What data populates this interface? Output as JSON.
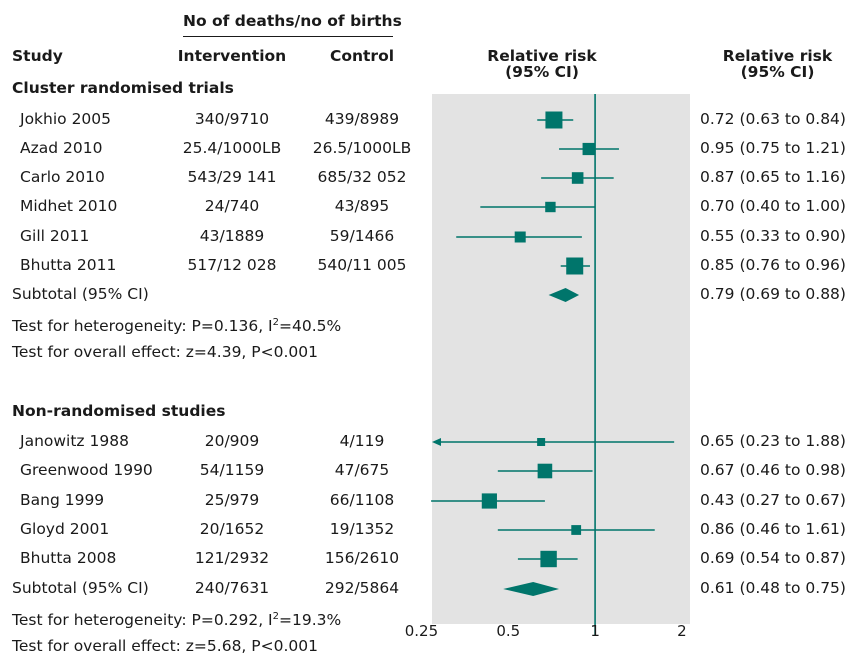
{
  "headers": {
    "deaths_group": "No of deaths/no of births",
    "study": "Study",
    "intervention": "Intervention",
    "control": "Control",
    "rr_plot_line1": "Relative risk",
    "rr_plot_line2": "(95% CI)",
    "rr_text_line1": "Relative risk",
    "rr_text_line2": "(95% CI)"
  },
  "colors": {
    "marker": "#00756b",
    "panel": "#e3e3e3",
    "text": "#1a1a1a"
  },
  "chart_data": {
    "type": "forest",
    "xscale": "log",
    "xlim": [
      0.23,
      2.05
    ],
    "xticks": [
      0.25,
      0.5,
      1,
      2
    ],
    "xtick_labels": [
      "0.25",
      "0.5",
      "1",
      "2"
    ],
    "reference_line": 1,
    "groups": [
      {
        "title": "Cluster randomised trials",
        "studies": [
          {
            "name": "Jokhio 2005",
            "intervention": "340/9710",
            "control": "439/8989",
            "rr": 0.72,
            "lo": 0.63,
            "hi": 0.84,
            "ci_text": "0.72 (0.63 to 0.84)",
            "weight": 1.0
          },
          {
            "name": "Azad 2010",
            "intervention": "25.4/1000LB",
            "control": "26.5/1000LB",
            "rr": 0.95,
            "lo": 0.75,
            "hi": 1.21,
            "ci_text": "0.95 (0.75 to 1.21)",
            "weight": 0.6
          },
          {
            "name": "Carlo 2010",
            "intervention": "543/29 141",
            "control": "685/32 052",
            "rr": 0.87,
            "lo": 0.65,
            "hi": 1.16,
            "ci_text": "0.87 (0.65 to 1.16)",
            "weight": 0.55
          },
          {
            "name": "Midhet 2010",
            "intervention": "24/740",
            "control": "43/895",
            "rr": 0.7,
            "lo": 0.4,
            "hi": 1.0,
            "ci_text": "0.70 (0.40 to 1.00)",
            "weight": 0.45
          },
          {
            "name": "Gill 2011",
            "intervention": "43/1889",
            "control": "59/1466",
            "rr": 0.55,
            "lo": 0.33,
            "hi": 0.9,
            "ci_text": "0.55 (0.33 to 0.90)",
            "weight": 0.5
          },
          {
            "name": "Bhutta 2011",
            "intervention": "517/12 028",
            "control": "540/11 005",
            "rr": 0.85,
            "lo": 0.76,
            "hi": 0.96,
            "ci_text": "0.85 (0.76 to 0.96)",
            "weight": 1.0
          }
        ],
        "subtotal": {
          "label": "Subtotal (95% CI)",
          "intervention": "",
          "control": "",
          "rr": 0.79,
          "lo": 0.69,
          "hi": 0.88,
          "ci_text": "0.79 (0.69 to 0.88)"
        },
        "heterogeneity_prefix": "Test for heterogeneity: P=0.136, I",
        "heterogeneity_sup": "2",
        "heterogeneity_suffix": "=40.5%",
        "overall_effect": "Test for overall effect: z=4.39, P<0.001"
      },
      {
        "title": "Non-randomised studies",
        "studies": [
          {
            "name": "Janowitz 1988",
            "intervention": "20/909",
            "control": "4/119",
            "rr": 0.65,
            "lo": 0.23,
            "hi": 1.88,
            "ci_text": "0.65 (0.23 to 1.88)",
            "weight": 0.25,
            "lo_arrow": true
          },
          {
            "name": "Greenwood 1990",
            "intervention": "54/1159",
            "control": "47/675",
            "rr": 0.67,
            "lo": 0.46,
            "hi": 0.98,
            "ci_text": "0.67 (0.46 to 0.98)",
            "weight": 0.8
          },
          {
            "name": "Bang 1999",
            "intervention": "25/979",
            "control": "66/1108",
            "rr": 0.43,
            "lo": 0.27,
            "hi": 0.67,
            "ci_text": "0.43 (0.27 to 0.67)",
            "weight": 0.85
          },
          {
            "name": "Gloyd 2001",
            "intervention": "20/1652",
            "control": "19/1352",
            "rr": 0.86,
            "lo": 0.46,
            "hi": 1.61,
            "ci_text": "0.86 (0.46 to 1.61)",
            "weight": 0.4
          },
          {
            "name": "Bhutta 2008",
            "intervention": "121/2932",
            "control": "156/2610",
            "rr": 0.69,
            "lo": 0.54,
            "hi": 0.87,
            "ci_text": "0.69 (0.54 to 0.87)",
            "weight": 0.95
          }
        ],
        "subtotal": {
          "label": "Subtotal (95% CI)",
          "intervention": "240/7631",
          "control": "292/5864",
          "rr": 0.61,
          "lo": 0.48,
          "hi": 0.75,
          "ci_text": "0.61 (0.48 to 0.75)"
        },
        "heterogeneity_prefix": "Test for heterogeneity: P=0.292, I",
        "heterogeneity_sup": "2",
        "heterogeneity_suffix": "=19.3%",
        "overall_effect": "Test for overall effect: z=5.68, P<0.001"
      }
    ]
  }
}
